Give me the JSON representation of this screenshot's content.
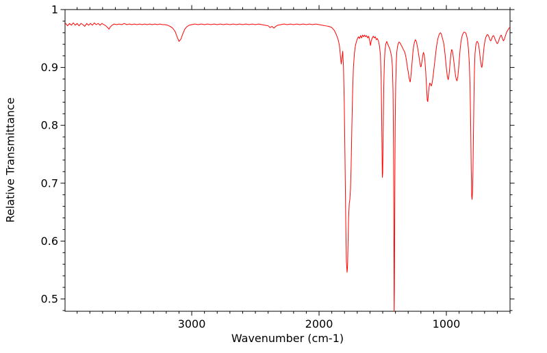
{
  "chart": {
    "xlabel": "Wavenumber (cm-1)",
    "ylabel": "Relative Transmittance"
  },
  "chart_data": {
    "type": "line",
    "title": "",
    "xlabel": "Wavenumber (cm-1)",
    "ylabel": "Relative Transmittance",
    "x_axis_reversed": true,
    "xlim": [
      3995,
      500
    ],
    "ylim": [
      0.4787,
      1.0
    ],
    "x_major_ticks": [
      3000,
      2000,
      1000
    ],
    "x_tick_labels": [
      "3000",
      "2000",
      "1000"
    ],
    "x_minor_tick_step": 100,
    "y_major_ticks": [
      1.0,
      0.9,
      0.8,
      0.7,
      0.6,
      0.5
    ],
    "y_tick_labels": [
      "1",
      "0.9",
      "0.8",
      "0.7",
      "0.6",
      "0.5"
    ],
    "y_minor_tick_step": 0.02,
    "grid": false,
    "legend": false,
    "line_color": "#ff0000",
    "axis_color": "#000000",
    "background_color": "#ffffff",
    "points": [
      [
        4000,
        0.973
      ],
      [
        3990,
        0.976
      ],
      [
        3975,
        0.972
      ],
      [
        3960,
        0.976
      ],
      [
        3945,
        0.973
      ],
      [
        3930,
        0.977
      ],
      [
        3915,
        0.973
      ],
      [
        3900,
        0.976
      ],
      [
        3885,
        0.972
      ],
      [
        3870,
        0.976
      ],
      [
        3855,
        0.974
      ],
      [
        3840,
        0.971
      ],
      [
        3825,
        0.976
      ],
      [
        3810,
        0.973
      ],
      [
        3795,
        0.976
      ],
      [
        3780,
        0.973
      ],
      [
        3765,
        0.977
      ],
      [
        3750,
        0.974
      ],
      [
        3735,
        0.976
      ],
      [
        3720,
        0.973
      ],
      [
        3705,
        0.976
      ],
      [
        3690,
        0.974
      ],
      [
        3675,
        0.972
      ],
      [
        3660,
        0.969
      ],
      [
        3650,
        0.966
      ],
      [
        3640,
        0.97
      ],
      [
        3625,
        0.973
      ],
      [
        3610,
        0.975
      ],
      [
        3590,
        0.974
      ],
      [
        3570,
        0.975
      ],
      [
        3550,
        0.974
      ],
      [
        3530,
        0.976
      ],
      [
        3510,
        0.974
      ],
      [
        3490,
        0.975
      ],
      [
        3470,
        0.974
      ],
      [
        3450,
        0.975
      ],
      [
        3430,
        0.974
      ],
      [
        3410,
        0.975
      ],
      [
        3390,
        0.974
      ],
      [
        3370,
        0.975
      ],
      [
        3350,
        0.974
      ],
      [
        3330,
        0.975
      ],
      [
        3310,
        0.974
      ],
      [
        3290,
        0.975
      ],
      [
        3270,
        0.974
      ],
      [
        3250,
        0.975
      ],
      [
        3230,
        0.974
      ],
      [
        3210,
        0.974
      ],
      [
        3190,
        0.973
      ],
      [
        3170,
        0.971
      ],
      [
        3150,
        0.968
      ],
      [
        3130,
        0.962
      ],
      [
        3115,
        0.953
      ],
      [
        3100,
        0.945
      ],
      [
        3085,
        0.949
      ],
      [
        3070,
        0.958
      ],
      [
        3055,
        0.966
      ],
      [
        3040,
        0.97
      ],
      [
        3020,
        0.973
      ],
      [
        3000,
        0.974
      ],
      [
        2975,
        0.975
      ],
      [
        2950,
        0.974
      ],
      [
        2925,
        0.975
      ],
      [
        2900,
        0.974
      ],
      [
        2875,
        0.975
      ],
      [
        2850,
        0.974
      ],
      [
        2825,
        0.975
      ],
      [
        2800,
        0.974
      ],
      [
        2775,
        0.975
      ],
      [
        2750,
        0.974
      ],
      [
        2725,
        0.975
      ],
      [
        2700,
        0.974
      ],
      [
        2675,
        0.975
      ],
      [
        2650,
        0.974
      ],
      [
        2625,
        0.975
      ],
      [
        2600,
        0.974
      ],
      [
        2575,
        0.975
      ],
      [
        2550,
        0.974
      ],
      [
        2525,
        0.975
      ],
      [
        2500,
        0.974
      ],
      [
        2475,
        0.975
      ],
      [
        2450,
        0.974
      ],
      [
        2425,
        0.973
      ],
      [
        2400,
        0.972
      ],
      [
        2385,
        0.969
      ],
      [
        2370,
        0.971
      ],
      [
        2355,
        0.968
      ],
      [
        2340,
        0.971
      ],
      [
        2325,
        0.973
      ],
      [
        2300,
        0.974
      ],
      [
        2275,
        0.975
      ],
      [
        2250,
        0.974
      ],
      [
        2225,
        0.975
      ],
      [
        2200,
        0.974
      ],
      [
        2175,
        0.975
      ],
      [
        2150,
        0.974
      ],
      [
        2125,
        0.975
      ],
      [
        2100,
        0.974
      ],
      [
        2075,
        0.975
      ],
      [
        2050,
        0.974
      ],
      [
        2025,
        0.975
      ],
      [
        2000,
        0.974
      ],
      [
        1975,
        0.973
      ],
      [
        1950,
        0.972
      ],
      [
        1925,
        0.971
      ],
      [
        1900,
        0.969
      ],
      [
        1880,
        0.964
      ],
      [
        1865,
        0.957
      ],
      [
        1850,
        0.948
      ],
      [
        1840,
        0.938
      ],
      [
        1832,
        0.92
      ],
      [
        1826,
        0.906
      ],
      [
        1820,
        0.916
      ],
      [
        1814,
        0.928
      ],
      [
        1808,
        0.9
      ],
      [
        1802,
        0.84
      ],
      [
        1796,
        0.74
      ],
      [
        1790,
        0.63
      ],
      [
        1785,
        0.565
      ],
      [
        1780,
        0.546
      ],
      [
        1776,
        0.556
      ],
      [
        1772,
        0.6
      ],
      [
        1768,
        0.64
      ],
      [
        1763,
        0.664
      ],
      [
        1758,
        0.672
      ],
      [
        1753,
        0.69
      ],
      [
        1748,
        0.73
      ],
      [
        1742,
        0.8
      ],
      [
        1736,
        0.86
      ],
      [
        1730,
        0.9
      ],
      [
        1722,
        0.925
      ],
      [
        1714,
        0.938
      ],
      [
        1706,
        0.945
      ],
      [
        1698,
        0.95
      ],
      [
        1690,
        0.953
      ],
      [
        1682,
        0.95
      ],
      [
        1674,
        0.955
      ],
      [
        1666,
        0.951
      ],
      [
        1658,
        0.956
      ],
      [
        1650,
        0.953
      ],
      [
        1642,
        0.956
      ],
      [
        1634,
        0.953
      ],
      [
        1626,
        0.955
      ],
      [
        1618,
        0.951
      ],
      [
        1610,
        0.954
      ],
      [
        1602,
        0.946
      ],
      [
        1596,
        0.938
      ],
      [
        1590,
        0.946
      ],
      [
        1582,
        0.951
      ],
      [
        1574,
        0.954
      ],
      [
        1566,
        0.951
      ],
      [
        1558,
        0.953
      ],
      [
        1550,
        0.948
      ],
      [
        1542,
        0.95
      ],
      [
        1534,
        0.946
      ],
      [
        1526,
        0.938
      ],
      [
        1518,
        0.922
      ],
      [
        1512,
        0.88
      ],
      [
        1507,
        0.79
      ],
      [
        1503,
        0.71
      ],
      [
        1500,
        0.718
      ],
      [
        1496,
        0.79
      ],
      [
        1492,
        0.865
      ],
      [
        1487,
        0.908
      ],
      [
        1482,
        0.93
      ],
      [
        1475,
        0.941
      ],
      [
        1468,
        0.945
      ],
      [
        1460,
        0.94
      ],
      [
        1452,
        0.936
      ],
      [
        1444,
        0.932
      ],
      [
        1436,
        0.925
      ],
      [
        1430,
        0.918
      ],
      [
        1424,
        0.902
      ],
      [
        1419,
        0.86
      ],
      [
        1415,
        0.76
      ],
      [
        1412,
        0.6
      ],
      [
        1410,
        0.47
      ],
      [
        1408,
        0.52
      ],
      [
        1405,
        0.68
      ],
      [
        1402,
        0.8
      ],
      [
        1398,
        0.87
      ],
      [
        1394,
        0.905
      ],
      [
        1390,
        0.925
      ],
      [
        1384,
        0.936
      ],
      [
        1378,
        0.941
      ],
      [
        1372,
        0.944
      ],
      [
        1366,
        0.943
      ],
      [
        1360,
        0.941
      ],
      [
        1354,
        0.938
      ],
      [
        1348,
        0.936
      ],
      [
        1342,
        0.933
      ],
      [
        1336,
        0.93
      ],
      [
        1330,
        0.928
      ],
      [
        1324,
        0.924
      ],
      [
        1318,
        0.918
      ],
      [
        1312,
        0.91
      ],
      [
        1306,
        0.9
      ],
      [
        1300,
        0.893
      ],
      [
        1294,
        0.884
      ],
      [
        1288,
        0.877
      ],
      [
        1284,
        0.875
      ],
      [
        1280,
        0.882
      ],
      [
        1274,
        0.896
      ],
      [
        1268,
        0.912
      ],
      [
        1262,
        0.928
      ],
      [
        1256,
        0.938
      ],
      [
        1250,
        0.944
      ],
      [
        1244,
        0.948
      ],
      [
        1238,
        0.946
      ],
      [
        1232,
        0.941
      ],
      [
        1226,
        0.934
      ],
      [
        1220,
        0.926
      ],
      [
        1214,
        0.917
      ],
      [
        1208,
        0.908
      ],
      [
        1202,
        0.901
      ],
      [
        1198,
        0.902
      ],
      [
        1192,
        0.91
      ],
      [
        1186,
        0.92
      ],
      [
        1180,
        0.926
      ],
      [
        1174,
        0.922
      ],
      [
        1168,
        0.91
      ],
      [
        1162,
        0.892
      ],
      [
        1156,
        0.868
      ],
      [
        1150,
        0.843
      ],
      [
        1146,
        0.841
      ],
      [
        1142,
        0.852
      ],
      [
        1136,
        0.866
      ],
      [
        1130,
        0.873
      ],
      [
        1124,
        0.871
      ],
      [
        1118,
        0.868
      ],
      [
        1112,
        0.873
      ],
      [
        1106,
        0.882
      ],
      [
        1100,
        0.893
      ],
      [
        1094,
        0.905
      ],
      [
        1088,
        0.916
      ],
      [
        1082,
        0.928
      ],
      [
        1076,
        0.938
      ],
      [
        1070,
        0.946
      ],
      [
        1064,
        0.952
      ],
      [
        1058,
        0.956
      ],
      [
        1052,
        0.959
      ],
      [
        1046,
        0.96
      ],
      [
        1040,
        0.958
      ],
      [
        1034,
        0.953
      ],
      [
        1028,
        0.948
      ],
      [
        1022,
        0.943
      ],
      [
        1016,
        0.934
      ],
      [
        1010,
        0.922
      ],
      [
        1004,
        0.908
      ],
      [
        998,
        0.895
      ],
      [
        992,
        0.884
      ],
      [
        986,
        0.879
      ],
      [
        982,
        0.882
      ],
      [
        976,
        0.894
      ],
      [
        970,
        0.91
      ],
      [
        964,
        0.924
      ],
      [
        958,
        0.931
      ],
      [
        952,
        0.928
      ],
      [
        946,
        0.919
      ],
      [
        940,
        0.908
      ],
      [
        934,
        0.896
      ],
      [
        928,
        0.886
      ],
      [
        922,
        0.879
      ],
      [
        916,
        0.877
      ],
      [
        910,
        0.884
      ],
      [
        904,
        0.898
      ],
      [
        898,
        0.915
      ],
      [
        892,
        0.931
      ],
      [
        886,
        0.943
      ],
      [
        880,
        0.951
      ],
      [
        874,
        0.956
      ],
      [
        868,
        0.959
      ],
      [
        862,
        0.961
      ],
      [
        856,
        0.961
      ],
      [
        850,
        0.96
      ],
      [
        844,
        0.957
      ],
      [
        838,
        0.952
      ],
      [
        832,
        0.944
      ],
      [
        826,
        0.93
      ],
      [
        820,
        0.908
      ],
      [
        814,
        0.868
      ],
      [
        809,
        0.8
      ],
      [
        805,
        0.726
      ],
      [
        801,
        0.678
      ],
      [
        798,
        0.672
      ],
      [
        795,
        0.684
      ],
      [
        791,
        0.722
      ],
      [
        787,
        0.79
      ],
      [
        783,
        0.855
      ],
      [
        779,
        0.9
      ],
      [
        775,
        0.924
      ],
      [
        770,
        0.936
      ],
      [
        765,
        0.942
      ],
      [
        760,
        0.945
      ],
      [
        754,
        0.944
      ],
      [
        748,
        0.94
      ],
      [
        742,
        0.932
      ],
      [
        736,
        0.92
      ],
      [
        730,
        0.909
      ],
      [
        725,
        0.902
      ],
      [
        721,
        0.9
      ],
      [
        717,
        0.906
      ],
      [
        712,
        0.917
      ],
      [
        707,
        0.929
      ],
      [
        702,
        0.939
      ],
      [
        696,
        0.947
      ],
      [
        690,
        0.952
      ],
      [
        684,
        0.955
      ],
      [
        678,
        0.957
      ],
      [
        672,
        0.956
      ],
      [
        666,
        0.953
      ],
      [
        660,
        0.949
      ],
      [
        654,
        0.946
      ],
      [
        648,
        0.947
      ],
      [
        642,
        0.951
      ],
      [
        636,
        0.954
      ],
      [
        630,
        0.955
      ],
      [
        624,
        0.953
      ],
      [
        618,
        0.949
      ],
      [
        612,
        0.946
      ],
      [
        606,
        0.943
      ],
      [
        600,
        0.941
      ],
      [
        594,
        0.943
      ],
      [
        588,
        0.947
      ],
      [
        582,
        0.951
      ],
      [
        576,
        0.954
      ],
      [
        570,
        0.956
      ],
      [
        564,
        0.953
      ],
      [
        558,
        0.949
      ],
      [
        552,
        0.946
      ],
      [
        546,
        0.948
      ],
      [
        540,
        0.952
      ],
      [
        534,
        0.956
      ],
      [
        528,
        0.96
      ],
      [
        522,
        0.963
      ],
      [
        516,
        0.965
      ],
      [
        510,
        0.967
      ],
      [
        504,
        0.969
      ],
      [
        498,
        0.97
      ],
      [
        492,
        0.971
      ],
      [
        486,
        0.972
      ],
      [
        480,
        0.973
      ],
      [
        474,
        0.973
      ],
      [
        468,
        0.974
      ],
      [
        462,
        0.974
      ],
      [
        456,
        0.975
      ],
      [
        450,
        0.975
      ]
    ]
  }
}
